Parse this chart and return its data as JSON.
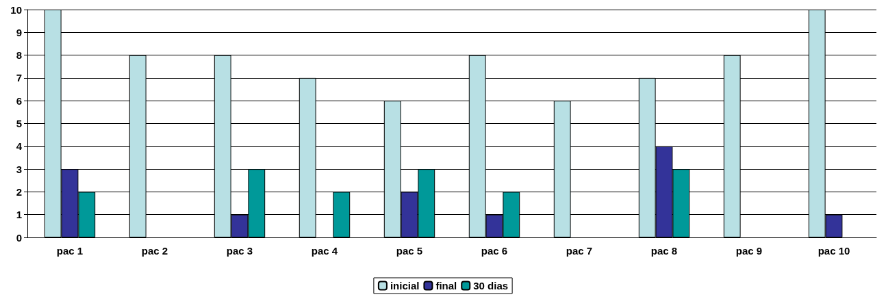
{
  "chart_data": {
    "type": "bar",
    "categories": [
      "pac 1",
      "pac 2",
      "pac 3",
      "pac 4",
      "pac 5",
      "pac 6",
      "pac 7",
      "pac 8",
      "pac 9",
      "pac 10"
    ],
    "series": [
      {
        "name": "inicial",
        "color": "#b8e0e4",
        "values": [
          10,
          8,
          8,
          7,
          6,
          8,
          6,
          7,
          8,
          10
        ]
      },
      {
        "name": "final",
        "color": "#333399",
        "values": [
          3,
          0,
          1,
          0,
          2,
          1,
          0,
          4,
          0,
          1
        ]
      },
      {
        "name": "30 dias",
        "color": "#009999",
        "values": [
          2,
          0,
          3,
          2,
          3,
          2,
          0,
          3,
          0,
          0
        ]
      }
    ],
    "ylim": [
      0,
      10
    ],
    "yticks": [
      0,
      1,
      2,
      3,
      4,
      5,
      6,
      7,
      8,
      9,
      10
    ],
    "grid": "y",
    "legend": "bottom"
  }
}
